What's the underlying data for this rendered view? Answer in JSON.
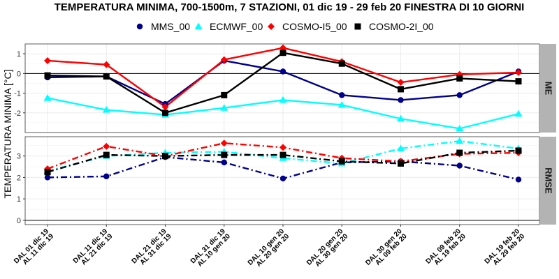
{
  "chart_data": {
    "type": "line",
    "title": "TEMPERATURA MINIMA, 700-1500m, 7 STAZIONI, 01 dic 19 - 29 feb 20 FINESTRA DI 10 GIORNI",
    "ylabel": "TEMPERATURA MINIMA [°C]",
    "categories": [
      [
        "DAL 01 dic 19",
        "AL 11 dic 19"
      ],
      [
        "DAL 11 dic 19",
        "AL 21 dic 19"
      ],
      [
        "DAL 21 dic 19",
        "AL 31 dic 19"
      ],
      [
        "DAL 31 dic 19",
        "AL 10 gen 20"
      ],
      [
        "DAL 10 gen 20",
        "AL 20 gen 20"
      ],
      [
        "DAL 20 gen 20",
        "AL 30 gen 20"
      ],
      [
        "DAL 30 gen 20",
        "AL 09 feb 20"
      ],
      [
        "DAL 09 feb 20",
        "AL 19 feb 20"
      ],
      [
        "DAL 19 feb 20",
        "AL 29 feb 20"
      ]
    ],
    "legend": [
      "MMS_00",
      "ECMWF_00",
      "COSMO-I5_00",
      "COSMO-2I_00"
    ],
    "legend_position": "top",
    "grid": true,
    "series_style": [
      {
        "color": "#00008b",
        "marker": "circle"
      },
      {
        "color": "#00ffff",
        "marker": "triangle"
      },
      {
        "color": "#ff0000",
        "marker": "diamond"
      },
      {
        "color": "#000000",
        "marker": "square"
      }
    ],
    "panels": [
      {
        "strip": "ME",
        "ylim": [
          -3,
          1.5
        ],
        "yticks": [
          -2,
          -1,
          0,
          1
        ],
        "line_style": "solid",
        "zero_line": true,
        "series": [
          {
            "name": "MMS_00",
            "values": [
              -0.2,
              -0.15,
              -1.55,
              0.65,
              0.1,
              -1.1,
              -1.35,
              -1.1,
              0.1
            ]
          },
          {
            "name": "ECMWF_00",
            "values": [
              -1.25,
              -1.85,
              -2.1,
              -1.75,
              -1.35,
              -1.6,
              -2.3,
              -2.8,
              -2.05
            ]
          },
          {
            "name": "COSMO-I5_00",
            "values": [
              0.65,
              0.45,
              -1.7,
              0.7,
              1.3,
              0.6,
              -0.45,
              -0.05,
              0.05
            ]
          },
          {
            "name": "COSMO-2I_00",
            "values": [
              -0.1,
              -0.15,
              -2.0,
              -1.1,
              1.05,
              0.5,
              -0.8,
              -0.25,
              -0.4
            ]
          }
        ]
      },
      {
        "strip": "RMSE",
        "ylim": [
          -0.2,
          3.9
        ],
        "yticks": [
          0,
          1,
          2,
          3
        ],
        "line_style": "dashdot",
        "zero_line": true,
        "series": [
          {
            "name": "MMS_00",
            "values": [
              2.0,
              2.05,
              2.95,
              2.7,
              1.95,
              2.7,
              2.75,
              2.55,
              1.9
            ]
          },
          {
            "name": "ECMWF_00",
            "values": [
              2.3,
              3.0,
              3.15,
              3.2,
              2.9,
              2.65,
              3.35,
              3.7,
              3.35
            ]
          },
          {
            "name": "COSMO-I5_00",
            "values": [
              2.4,
              3.45,
              3.0,
              3.6,
              3.4,
              2.9,
              2.75,
              3.1,
              3.15
            ]
          },
          {
            "name": "COSMO-2I_00",
            "values": [
              2.25,
              3.05,
              3.0,
              3.05,
              3.05,
              2.75,
              2.65,
              3.15,
              3.25
            ]
          }
        ]
      }
    ]
  }
}
